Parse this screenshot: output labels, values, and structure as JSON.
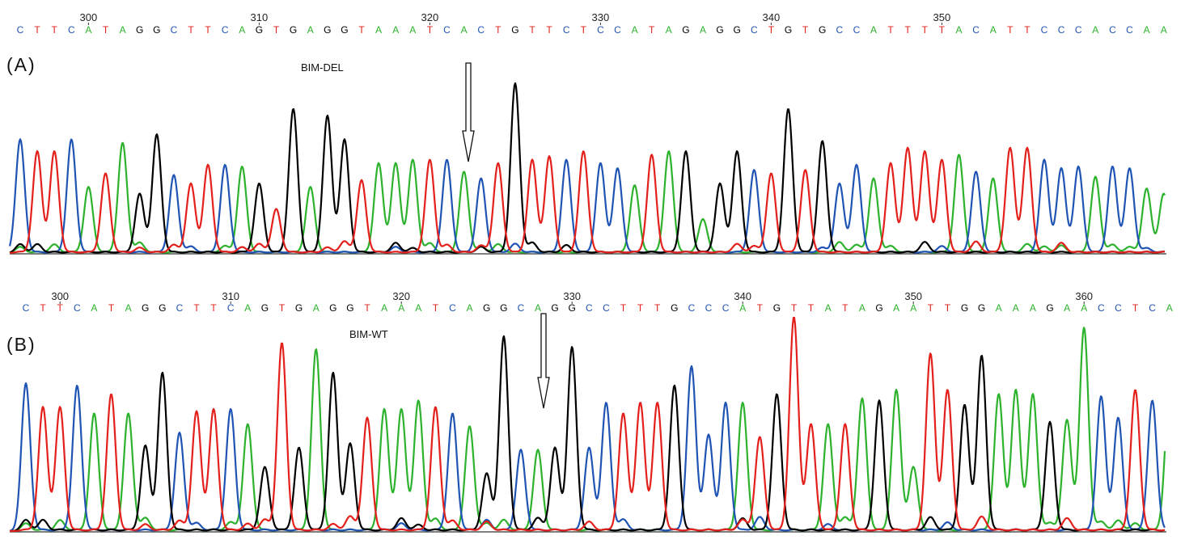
{
  "colors": {
    "A": "#2db22d",
    "C": "#2054b4",
    "G": "#000000",
    "T": "#e3201b"
  },
  "panels": [
    {
      "panel_label": "(A)",
      "sample_label": "BIM-DEL",
      "position_ticks": [
        300,
        310,
        320,
        330,
        340,
        350
      ],
      "first_base_position": 296,
      "sequence": "CTTCATAGGCTTCAGTGAGGTAAATCACTGTTCTCCATAGAGGCTGTGCCATTTTACATTCCCACCAA",
      "arrow_position": 318
    },
    {
      "panel_label": "(B)",
      "sample_label": "BIM-WT",
      "position_ticks": [
        300,
        310,
        320,
        330,
        340,
        350,
        360
      ],
      "first_base_position": 298,
      "sequence": "CTTCATAGGCTTCAGTGAGGTAAATCAGGCAGGCCTTTGCCCATGTTATAGAATTGGAAAGAACCTCA",
      "arrow_position": 329
    }
  ],
  "chart_data": [
    {
      "type": "line",
      "title": "BIM-DEL",
      "panel": "(A)",
      "xlabel": "",
      "ylabel": "",
      "x_positions": [
        296,
        363
      ],
      "base_calls": "CTTCATAGGCTTCAGTGAGGTAAATCACTGTTCTCCATAGAGGCTGTGCCATTTTACATTCCCACCAA",
      "peak_heights": [
        0.67,
        0.6,
        0.6,
        0.67,
        0.39,
        0.47,
        0.65,
        0.35,
        0.7,
        0.46,
        0.41,
        0.52,
        0.52,
        0.51,
        0.41,
        0.26,
        0.85,
        0.39,
        0.81,
        0.67,
        0.43,
        0.53,
        0.53,
        0.55,
        0.55,
        0.55,
        0.48,
        0.44,
        0.53,
        1.0,
        0.55,
        0.57,
        0.55,
        0.6,
        0.53,
        0.5,
        0.4,
        0.58,
        0.6,
        0.6,
        0.2,
        0.41,
        0.6,
        0.49,
        0.47,
        0.85,
        0.49,
        0.66,
        0.41,
        0.52,
        0.44,
        0.53,
        0.62,
        0.6,
        0.55,
        0.58,
        0.48,
        0.44,
        0.62,
        0.62,
        0.55,
        0.5,
        0.51,
        0.45,
        0.51,
        0.5,
        0.38,
        0.35
      ],
      "grid": false,
      "legend": "none"
    },
    {
      "type": "line",
      "title": "BIM-WT",
      "panel": "(B)",
      "xlabel": "",
      "ylabel": "",
      "x_positions": [
        298,
        365
      ],
      "base_calls": "CTTCATAGGCTTCAGTGAGGTAAATCAGGCAGGCCTTTGCCCATGTTATAGAATTGGAAAGAACCTCA",
      "peak_heights": [
        0.69,
        0.58,
        0.58,
        0.68,
        0.55,
        0.64,
        0.55,
        0.4,
        0.74,
        0.46,
        0.56,
        0.57,
        0.57,
        0.5,
        0.3,
        0.88,
        0.39,
        0.85,
        0.74,
        0.41,
        0.53,
        0.57,
        0.57,
        0.61,
        0.58,
        0.55,
        0.49,
        0.27,
        0.91,
        0.38,
        0.38,
        0.39,
        0.86,
        0.39,
        0.6,
        0.55,
        0.6,
        0.6,
        0.68,
        0.77,
        0.45,
        0.6,
        0.6,
        0.44,
        0.64,
        1.0,
        0.5,
        0.5,
        0.5,
        0.62,
        0.61,
        0.66,
        0.3,
        0.83,
        0.66,
        0.59,
        0.82,
        0.64,
        0.66,
        0.64,
        0.51,
        0.52,
        0.95,
        0.63,
        0.53,
        0.66,
        0.61,
        0.64
      ],
      "grid": false,
      "legend": "none"
    }
  ]
}
